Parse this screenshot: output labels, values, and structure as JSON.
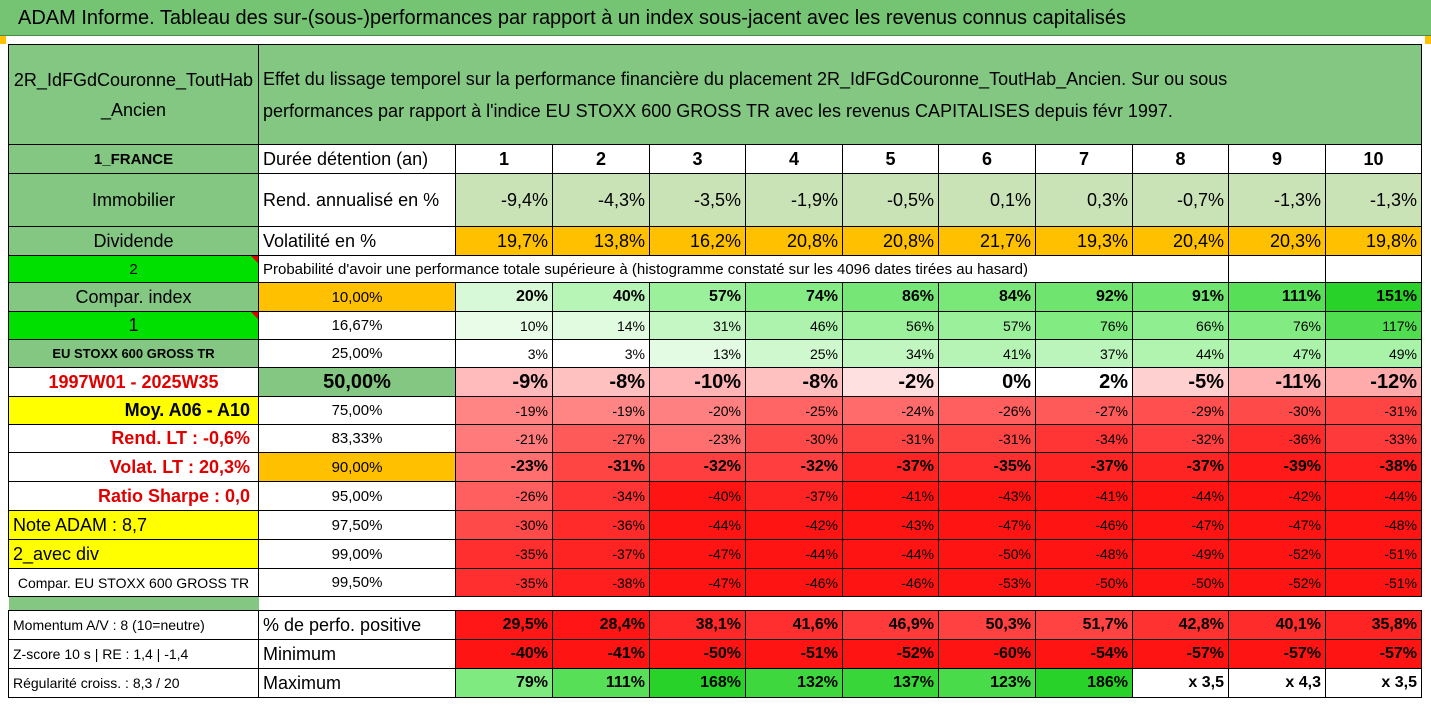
{
  "title": "ADAM Informe. Tableau des sur-(sous-)performances par rapport à un index sous-jacent avec les revenus connus capitalisés",
  "header": {
    "fund_name": "2R_IdFGdCouronne_ToutHab_Ancien",
    "description_line1": "Effet du lissage temporel sur la performance financière du placement 2R_IdFGdCouronne_ToutHab_Ancien. Sur ou sous",
    "description_line2": "performances par rapport à l'indice EU STOXX 600 GROSS TR avec les revenus CAPITALISES depuis févr 1997."
  },
  "years": [
    "1",
    "2",
    "3",
    "4",
    "5",
    "6",
    "7",
    "8",
    "9",
    "10"
  ],
  "rows": {
    "duration": {
      "left": "1_FRANCE",
      "label": "Durée détention (an)"
    },
    "rend": {
      "left": "Immobilier",
      "label": "Rend. annualisé en %",
      "values": [
        "-9,4%",
        "-4,3%",
        "-3,5%",
        "-1,9%",
        "-0,5%",
        "0,1%",
        "0,3%",
        "-0,7%",
        "-1,3%",
        "-1,3%"
      ]
    },
    "vol": {
      "left": "Dividende",
      "label": "Volatilité en %",
      "values": [
        "19,7%",
        "13,8%",
        "16,2%",
        "20,8%",
        "20,8%",
        "21,7%",
        "19,3%",
        "20,4%",
        "20,3%",
        "19,8%"
      ]
    },
    "prob_header": {
      "left": "2",
      "label": "Probabilité d'avoir une performance totale supérieure à (histogramme constaté sur les 4096 dates tirées au hasard)"
    }
  },
  "quantiles": [
    {
      "left": "Compar. index",
      "q": "10,00%",
      "values": [
        "20%",
        "40%",
        "57%",
        "74%",
        "86%",
        "84%",
        "92%",
        "91%",
        "111%",
        "151%"
      ]
    },
    {
      "left": "1",
      "q": "16,67%",
      "values": [
        "10%",
        "14%",
        "31%",
        "46%",
        "56%",
        "57%",
        "76%",
        "66%",
        "76%",
        "117%"
      ]
    },
    {
      "left": "EU STOXX 600 GROSS TR",
      "q": "25,00%",
      "values": [
        "3%",
        "3%",
        "13%",
        "25%",
        "34%",
        "41%",
        "37%",
        "44%",
        "47%",
        "49%"
      ]
    },
    {
      "left": "1997W01 - 2025W35",
      "q": "50,00%",
      "values": [
        "-9%",
        "-8%",
        "-10%",
        "-8%",
        "-2%",
        "0%",
        "2%",
        "-5%",
        "-11%",
        "-12%"
      ]
    },
    {
      "left": "Moy. A06 - A10",
      "q": "75,00%",
      "values": [
        "-19%",
        "-19%",
        "-20%",
        "-25%",
        "-24%",
        "-26%",
        "-27%",
        "-29%",
        "-30%",
        "-31%"
      ]
    },
    {
      "left": "Rend. LT :   -0,6%",
      "q": "83,33%",
      "values": [
        "-21%",
        "-27%",
        "-23%",
        "-30%",
        "-31%",
        "-31%",
        "-34%",
        "-32%",
        "-36%",
        "-33%"
      ]
    },
    {
      "left": "Volat. LT :   20,3%",
      "q": "90,00%",
      "values": [
        "-23%",
        "-31%",
        "-32%",
        "-32%",
        "-37%",
        "-35%",
        "-37%",
        "-37%",
        "-39%",
        "-38%"
      ]
    },
    {
      "left": "Ratio Sharpe :   0,0",
      "q": "95,00%",
      "values": [
        "-26%",
        "-34%",
        "-40%",
        "-37%",
        "-41%",
        "-43%",
        "-41%",
        "-44%",
        "-42%",
        "-44%"
      ]
    },
    {
      "left": "Note ADAM : 8,7",
      "q": "97,50%",
      "values": [
        "-30%",
        "-36%",
        "-44%",
        "-42%",
        "-43%",
        "-47%",
        "-46%",
        "-47%",
        "-47%",
        "-48%"
      ]
    },
    {
      "left": "2_avec div",
      "q": "99,00%",
      "values": [
        "-35%",
        "-37%",
        "-47%",
        "-44%",
        "-44%",
        "-50%",
        "-48%",
        "-49%",
        "-52%",
        "-51%"
      ]
    },
    {
      "left": "Compar. EU STOXX 600 GROSS TR",
      "q": "99,50%",
      "values": [
        "-35%",
        "-38%",
        "-47%",
        "-46%",
        "-46%",
        "-53%",
        "-50%",
        "-50%",
        "-52%",
        "-51%"
      ]
    }
  ],
  "stats": [
    {
      "left": "Momentum A/V : 8 (10=neutre)",
      "label": "% de perfo. positive",
      "values": [
        "29,5%",
        "28,4%",
        "38,1%",
        "41,6%",
        "46,9%",
        "50,3%",
        "51,7%",
        "42,8%",
        "40,1%",
        "35,8%"
      ]
    },
    {
      "left": "Z-score 10 s  | RE : 1,4 | -1,4",
      "label": "Minimum",
      "values": [
        "-40%",
        "-41%",
        "-50%",
        "-51%",
        "-52%",
        "-60%",
        "-54%",
        "-57%",
        "-57%",
        "-57%"
      ]
    },
    {
      "left": "Régularité croiss. : 8,3 / 20",
      "label": "Maximum",
      "values": [
        "79%",
        "111%",
        "168%",
        "132%",
        "137%",
        "123%",
        "186%",
        "x 3,5",
        "x 4,3",
        "x 3,5"
      ]
    }
  ],
  "colors": {
    "header_green": "#74c474",
    "label_green": "#83c783",
    "bright_green": "#00e000",
    "yellow": "#ffff00",
    "orange": "#ffc000",
    "pale_green": "#c9e2b6",
    "red_text": "#e00000"
  }
}
